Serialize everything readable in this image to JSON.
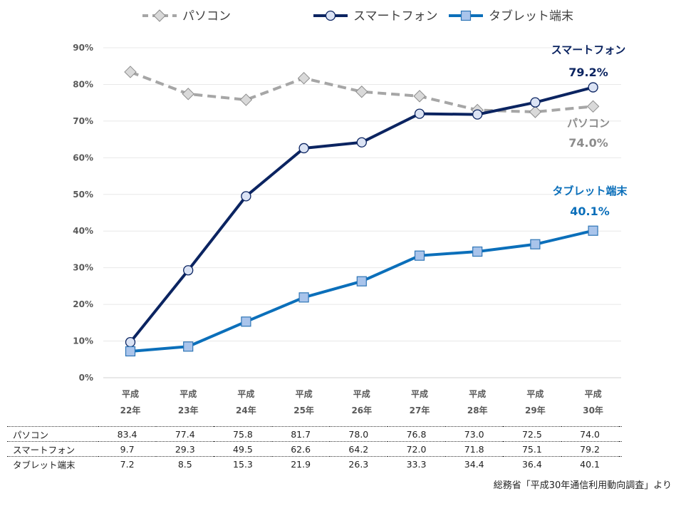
{
  "chart_data": {
    "type": "line",
    "title": "",
    "xlabel": "",
    "ylabel": "",
    "ylim": [
      0,
      90
    ],
    "yticks": [
      0,
      10,
      20,
      30,
      40,
      50,
      60,
      70,
      80,
      90
    ],
    "ytick_suffix": "%",
    "grid": true,
    "legend": "top",
    "categories": [
      [
        "平成",
        "22年"
      ],
      [
        "平成",
        "23年"
      ],
      [
        "平成",
        "24年"
      ],
      [
        "平成",
        "25年"
      ],
      [
        "平成",
        "26年"
      ],
      [
        "平成",
        "27年"
      ],
      [
        "平成",
        "28年"
      ],
      [
        "平成",
        "29年"
      ],
      [
        "平成",
        "30年"
      ]
    ],
    "series": [
      {
        "name": "パソコン",
        "color": "#a6a6a6",
        "marker": "diamond",
        "dashed": true,
        "values": [
          83.4,
          77.4,
          75.8,
          81.7,
          78.0,
          76.8,
          73.0,
          72.5,
          74.0
        ]
      },
      {
        "name": "スマートフォン",
        "color": "#0b2461",
        "marker": "circle",
        "dashed": false,
        "values": [
          9.7,
          29.3,
          49.5,
          62.6,
          64.2,
          72.0,
          71.8,
          75.1,
          79.2
        ]
      },
      {
        "name": "タブレット端末",
        "color": "#0b6fba",
        "marker": "square",
        "dashed": false,
        "values": [
          7.2,
          8.5,
          15.3,
          21.9,
          26.3,
          33.3,
          34.4,
          36.4,
          40.1
        ]
      }
    ],
    "annotations": [
      {
        "series": "スマートフォン",
        "name": "スマートフォン",
        "value": "79.2%",
        "color": "#0b2461"
      },
      {
        "series": "パソコン",
        "name": "パソコン",
        "value": "74.0%",
        "color": "#8c8c8c"
      },
      {
        "series": "タブレット端末",
        "name": "タブレット端末",
        "value": "40.1%",
        "color": "#0b6fba"
      }
    ]
  },
  "table": {
    "rows": [
      {
        "label": "パソコン",
        "values": [
          "83.4",
          "77.4",
          "75.8",
          "81.7",
          "78.0",
          "76.8",
          "73.0",
          "72.5",
          "74.0"
        ]
      },
      {
        "label": "スマートフォン",
        "values": [
          "9.7",
          "29.3",
          "49.5",
          "62.6",
          "64.2",
          "72.0",
          "71.8",
          "75.1",
          "79.2"
        ]
      },
      {
        "label": "タブレット端末",
        "values": [
          "7.2",
          "8.5",
          "15.3",
          "21.9",
          "26.3",
          "33.3",
          "34.4",
          "36.4",
          "40.1"
        ]
      }
    ]
  },
  "source": "総務省「平成30年通信利用動向調査」より"
}
